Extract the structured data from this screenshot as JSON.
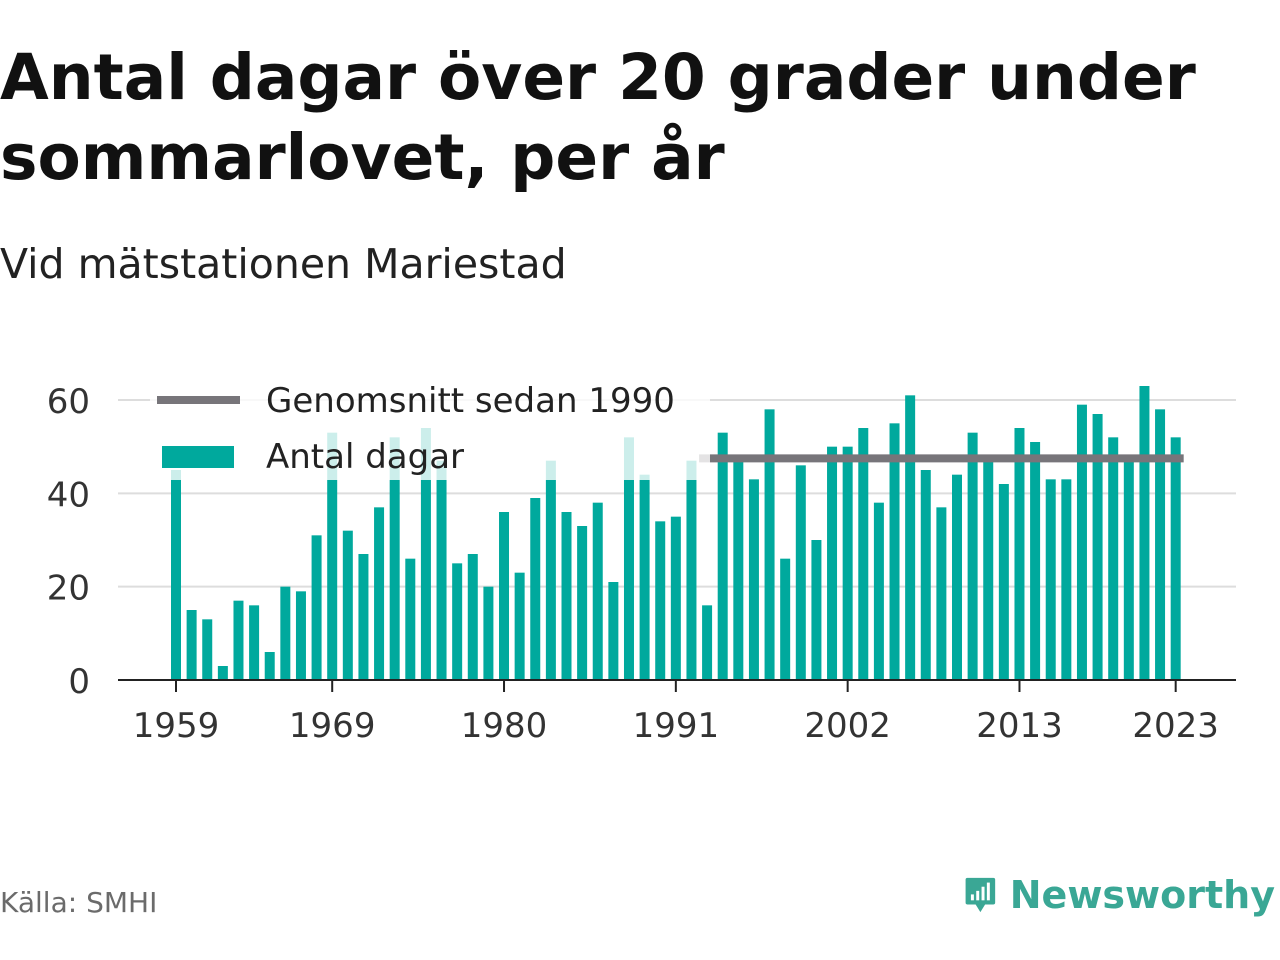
{
  "title": "Antal dagar över 20 grader under sommarlovet, per år",
  "subtitle": "Vid mätstationen Mariestad",
  "source": "Källa: SMHI",
  "brand": {
    "name": "Newsworthy",
    "icon": "newsworthy-logo-icon",
    "color": "#3aa795"
  },
  "colors": {
    "bar": "#00a99d",
    "average": "#77757a",
    "grid": "#dddddd",
    "axis": "#222222"
  },
  "chart_data": {
    "type": "bar",
    "title": "Antal dagar över 20 grader under sommarlovet, per år",
    "xlabel": "",
    "ylabel": "",
    "ylim": [
      0,
      63
    ],
    "yticks": [
      0,
      20,
      40,
      60
    ],
    "xticks": [
      1959,
      1969,
      1980,
      1991,
      2002,
      2013,
      2023
    ],
    "grid": true,
    "legend_position": "top-left",
    "x": [
      1959,
      1960,
      1961,
      1962,
      1963,
      1964,
      1965,
      1966,
      1967,
      1968,
      1969,
      1970,
      1971,
      1972,
      1973,
      1974,
      1975,
      1976,
      1977,
      1978,
      1979,
      1980,
      1981,
      1982,
      1983,
      1984,
      1985,
      1986,
      1987,
      1988,
      1989,
      1990,
      1991,
      1992,
      1993,
      1994,
      1995,
      1996,
      1997,
      1998,
      1999,
      2000,
      2001,
      2002,
      2003,
      2004,
      2005,
      2006,
      2007,
      2008,
      2009,
      2010,
      2011,
      2012,
      2013,
      2014,
      2015,
      2016,
      2017,
      2018,
      2019,
      2020,
      2021,
      2022,
      2023
    ],
    "series": [
      {
        "name": "Antal dagar",
        "type": "bar",
        "values": [
          45,
          15,
          13,
          3,
          17,
          16,
          6,
          20,
          19,
          31,
          53,
          32,
          27,
          37,
          52,
          26,
          54,
          47,
          25,
          27,
          20,
          36,
          23,
          39,
          47,
          36,
          33,
          38,
          21,
          52,
          44,
          34,
          35,
          47,
          16,
          53,
          48,
          43,
          58,
          26,
          46,
          30,
          50,
          50,
          54,
          38,
          55,
          61,
          45,
          37,
          44,
          53,
          47,
          42,
          54,
          51,
          43,
          43,
          59,
          57,
          52,
          47,
          63,
          58,
          52
        ]
      },
      {
        "name": "Genomsnitt sedan 1990",
        "type": "line",
        "x_start": 1993,
        "value": 47.5
      }
    ]
  }
}
